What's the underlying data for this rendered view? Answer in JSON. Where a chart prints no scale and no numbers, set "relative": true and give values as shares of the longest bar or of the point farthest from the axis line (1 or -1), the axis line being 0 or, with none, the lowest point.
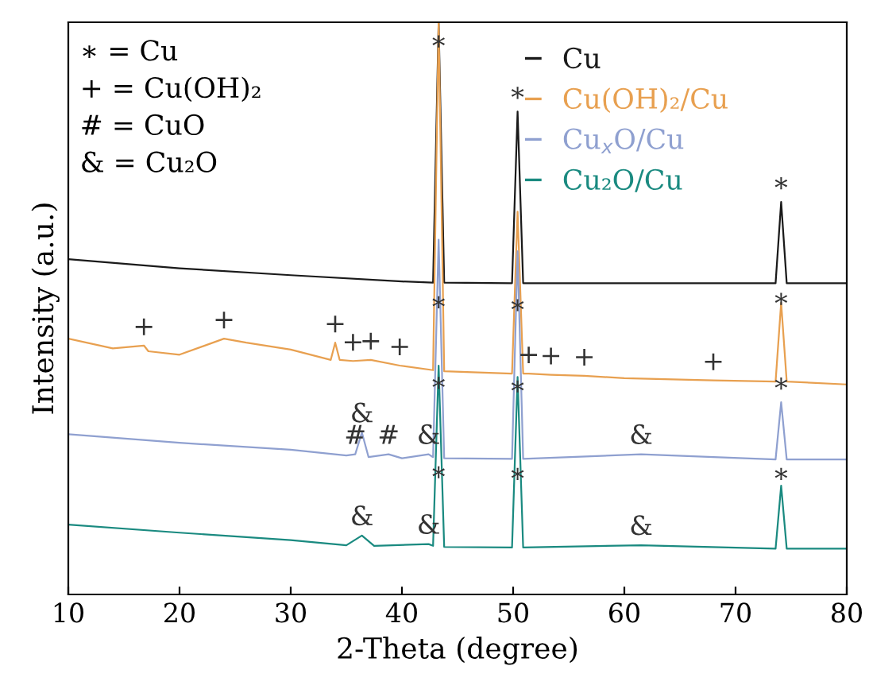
{
  "chart_data": {
    "type": "line",
    "relative": true,
    "xlabel": "2-Theta (degree)",
    "ylabel": "Intensity (a.u.)",
    "xlim": [
      10,
      80
    ],
    "xticks": [
      10,
      20,
      30,
      40,
      50,
      60,
      70,
      80
    ],
    "tick_labels": "x",
    "grid": false,
    "legend": "top right",
    "marker": "none",
    "line_style": "solid",
    "series": [
      {
        "name": "Cu",
        "color": "#1a1a1a",
        "x": [
          10,
          20,
          30,
          40,
          42.8,
          43.3,
          43.8,
          49.9,
          50.4,
          50.9,
          73.6,
          74.1,
          74.6,
          80
        ],
        "values": [
          0.586,
          0.57,
          0.558,
          0.547,
          0.545,
          1.0,
          0.545,
          0.544,
          0.844,
          0.544,
          0.544,
          0.686,
          0.544,
          0.544
        ]
      },
      {
        "name": "Cu(OH)₂/Cu",
        "color": "#e8a050",
        "x": [
          10,
          14,
          16.8,
          17.2,
          20,
          24,
          26,
          30,
          33.6,
          34,
          34.4,
          35.6,
          37.2,
          39.8,
          42.8,
          43.3,
          43.8,
          49.9,
          50.4,
          50.9,
          51.4,
          53.4,
          56.4,
          60,
          68,
          73.6,
          74.1,
          74.6,
          80
        ],
        "values": [
          0.447,
          0.43,
          0.435,
          0.425,
          0.419,
          0.447,
          0.44,
          0.428,
          0.41,
          0.44,
          0.41,
          0.408,
          0.41,
          0.4,
          0.392,
          1.0,
          0.39,
          0.386,
          0.669,
          0.386,
          0.386,
          0.384,
          0.382,
          0.378,
          0.374,
          0.372,
          0.51,
          0.372,
          0.367
        ]
      },
      {
        "name": "Cu$_{x}$O/Cu",
        "color": "#8fa0d0",
        "x": [
          10,
          20,
          30,
          35,
          35.8,
          36.4,
          37,
          38.8,
          40,
          42.4,
          42.8,
          43.3,
          43.8,
          49.9,
          50.4,
          50.9,
          61.5,
          73.6,
          74.1,
          74.6,
          80
        ],
        "values": [
          0.28,
          0.265,
          0.253,
          0.243,
          0.245,
          0.283,
          0.24,
          0.245,
          0.238,
          0.245,
          0.24,
          0.62,
          0.238,
          0.237,
          0.6,
          0.237,
          0.245,
          0.236,
          0.336,
          0.236,
          0.236
        ]
      },
      {
        "name": "Cu₂O/Cu",
        "color": "#1a8a80",
        "x": [
          10,
          20,
          30,
          35,
          36.4,
          37.5,
          42.4,
          42.8,
          43.3,
          43.8,
          49.9,
          50.4,
          50.9,
          61.5,
          73.6,
          74.1,
          74.6,
          80
        ],
        "values": [
          0.122,
          0.108,
          0.095,
          0.086,
          0.103,
          0.085,
          0.088,
          0.085,
          0.4,
          0.083,
          0.082,
          0.38,
          0.082,
          0.086,
          0.08,
          0.19,
          0.08,
          0.08
        ]
      }
    ],
    "annotations": [
      "∗ = Cu",
      "+ = Cu(OH)₂",
      "# = CuO",
      "& = Cu₂O",
      {
        "text": "∗",
        "x": 43.3,
        "y": 0.934
      },
      {
        "text": "∗",
        "x": 50.4,
        "y": 0.844
      },
      {
        "text": "∗",
        "x": 74.1,
        "y": 0.686
      },
      {
        "text": "∗",
        "x": 43.3,
        "y": 0.478
      },
      {
        "text": "∗",
        "x": 50.4,
        "y": 0.473
      },
      {
        "text": "∗",
        "x": 74.1,
        "y": 0.484
      },
      {
        "text": "+",
        "x": 16.8,
        "y": 0.435
      },
      {
        "text": "+",
        "x": 24,
        "y": 0.447
      },
      {
        "text": "+",
        "x": 34,
        "y": 0.44
      },
      {
        "text": "+",
        "x": 35.6,
        "y": 0.408
      },
      {
        "text": "+",
        "x": 37.2,
        "y": 0.41
      },
      {
        "text": "+",
        "x": 39.8,
        "y": 0.4
      },
      {
        "text": "+",
        "x": 51.4,
        "y": 0.386
      },
      {
        "text": "+",
        "x": 53.4,
        "y": 0.384
      },
      {
        "text": "+",
        "x": 56.4,
        "y": 0.382
      },
      {
        "text": "+",
        "x": 68,
        "y": 0.374
      },
      {
        "text": "∗",
        "x": 43.3,
        "y": 0.337
      },
      {
        "text": "∗",
        "x": 50.4,
        "y": 0.331
      },
      {
        "text": "∗",
        "x": 74.1,
        "y": 0.336
      },
      {
        "text": "&",
        "x": 36.4,
        "y": 0.283
      },
      {
        "text": "#",
        "x": 35.8,
        "y": 0.245
      },
      {
        "text": "#",
        "x": 38.8,
        "y": 0.245
      },
      {
        "text": "&",
        "x": 42.4,
        "y": 0.245
      },
      {
        "text": "&",
        "x": 61.5,
        "y": 0.245
      },
      {
        "text": "∗",
        "x": 43.3,
        "y": 0.181
      },
      {
        "text": "∗",
        "x": 50.4,
        "y": 0.178
      },
      {
        "text": "∗",
        "x": 74.1,
        "y": 0.178
      },
      {
        "text": "&",
        "x": 36.4,
        "y": 0.103
      },
      {
        "text": "&",
        "x": 42.4,
        "y": 0.088
      },
      {
        "text": "&",
        "x": 61.5,
        "y": 0.086
      }
    ]
  }
}
